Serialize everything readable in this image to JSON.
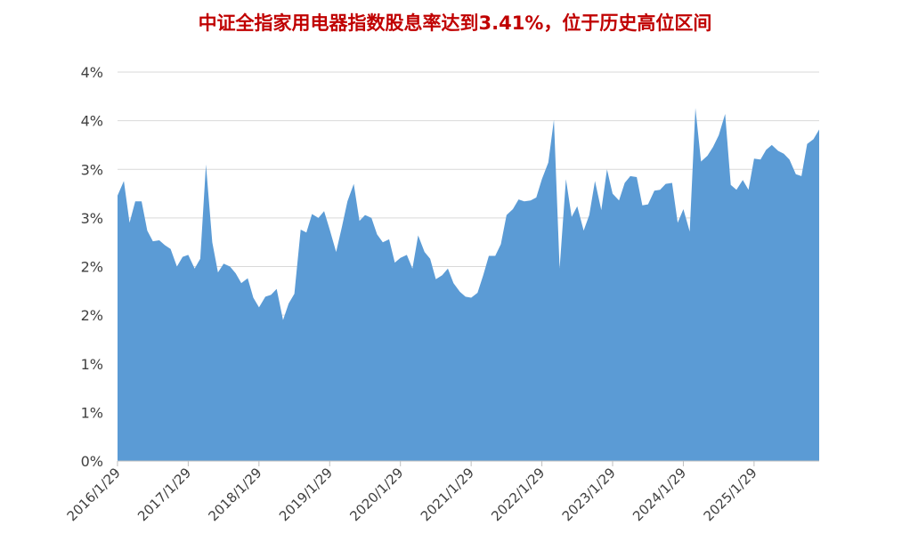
{
  "chart_data": {
    "type": "area",
    "title": "中证全指家用电器指数股息率达到3.41%，位于历史高位区间",
    "xlabel": "",
    "ylabel": "",
    "y_tick_labels": [
      "0%",
      "1%",
      "1%",
      "2%",
      "2%",
      "3%",
      "3%",
      "4%",
      "4%"
    ],
    "ylim": [
      0,
      4.0
    ],
    "x_tick_labels": [
      "2016/1/29",
      "2017/1/29",
      "2018/1/29",
      "2019/1/29",
      "2020/1/29",
      "2021/1/29",
      "2022/1/29",
      "2023/1/29",
      "2024/1/29",
      "2025/1/29"
    ],
    "x_range_years": [
      2016.08,
      2026.0
    ],
    "grid": true,
    "legend": "none",
    "colors": {
      "fill": "#5b9bd5",
      "grid": "#d9d9d9",
      "title": "#c00000"
    },
    "series": [
      {
        "x": [
          2016.08,
          2016.17,
          2016.25,
          2016.33,
          2016.42,
          2016.5,
          2016.58,
          2016.67,
          2016.75,
          2016.83,
          2016.92,
          2017.0,
          2017.08,
          2017.17,
          2017.25,
          2017.33,
          2017.42,
          2017.5,
          2017.58,
          2017.67,
          2017.75,
          2017.83,
          2017.92,
          2018.0,
          2018.08,
          2018.17,
          2018.25,
          2018.33,
          2018.42,
          2018.5,
          2018.58,
          2018.67,
          2018.75,
          2018.83,
          2018.92,
          2019.0,
          2019.08,
          2019.17,
          2019.25,
          2019.33,
          2019.42,
          2019.5,
          2019.58,
          2019.67,
          2019.75,
          2019.83,
          2019.92,
          2020.0,
          2020.08,
          2020.17,
          2020.25,
          2020.33,
          2020.42,
          2020.5,
          2020.58,
          2020.67,
          2020.75,
          2020.83,
          2020.92,
          2021.0,
          2021.08,
          2021.17,
          2021.25,
          2021.33,
          2021.42,
          2021.5,
          2021.58,
          2021.67,
          2021.75,
          2021.83,
          2021.92,
          2022.0,
          2022.08,
          2022.17,
          2022.25,
          2022.33,
          2022.42,
          2022.5,
          2022.58,
          2022.67,
          2022.75,
          2022.83,
          2022.92,
          2023.0,
          2023.08,
          2023.17,
          2023.25,
          2023.33,
          2023.42,
          2023.5,
          2023.58,
          2023.67,
          2023.75,
          2023.83,
          2023.92,
          2024.0,
          2024.08,
          2024.17,
          2024.25,
          2024.33,
          2024.42,
          2024.5,
          2024.58,
          2024.67,
          2024.75,
          2024.83,
          2024.92,
          2025.0,
          2025.08,
          2025.17,
          2025.25,
          2025.33,
          2025.42,
          2025.5,
          2025.58,
          2025.67,
          2025.75,
          2025.83,
          2025.92,
          2026.0
        ],
        "values": [
          2.73,
          2.88,
          2.45,
          2.67,
          2.67,
          2.37,
          2.26,
          2.27,
          2.22,
          2.18,
          2.0,
          2.1,
          2.12,
          1.98,
          2.08,
          3.05,
          2.25,
          1.94,
          2.03,
          2.0,
          1.93,
          1.83,
          1.88,
          1.68,
          1.58,
          1.69,
          1.71,
          1.77,
          1.45,
          1.62,
          1.72,
          2.38,
          2.35,
          2.54,
          2.5,
          2.57,
          2.38,
          2.15,
          2.4,
          2.67,
          2.85,
          2.47,
          2.53,
          2.5,
          2.33,
          2.25,
          2.28,
          2.04,
          2.09,
          2.12,
          1.98,
          2.32,
          2.15,
          2.08,
          1.87,
          1.91,
          1.98,
          1.83,
          1.74,
          1.69,
          1.68,
          1.73,
          1.91,
          2.11,
          2.11,
          2.23,
          2.53,
          2.59,
          2.69,
          2.67,
          2.68,
          2.71,
          2.9,
          3.07,
          3.51,
          1.98,
          2.9,
          2.51,
          2.62,
          2.37,
          2.53,
          2.88,
          2.58,
          3.0,
          2.75,
          2.68,
          2.86,
          2.93,
          2.92,
          2.63,
          2.64,
          2.78,
          2.79,
          2.85,
          2.86,
          2.45,
          2.59,
          2.36,
          3.63,
          3.08,
          3.14,
          3.23,
          3.35,
          3.57,
          2.84,
          2.79,
          2.89,
          2.79,
          3.11,
          3.1,
          3.2,
          3.25,
          3.19,
          3.16,
          3.1,
          2.95,
          2.93,
          3.26,
          3.31,
          3.41
        ]
      }
    ]
  }
}
